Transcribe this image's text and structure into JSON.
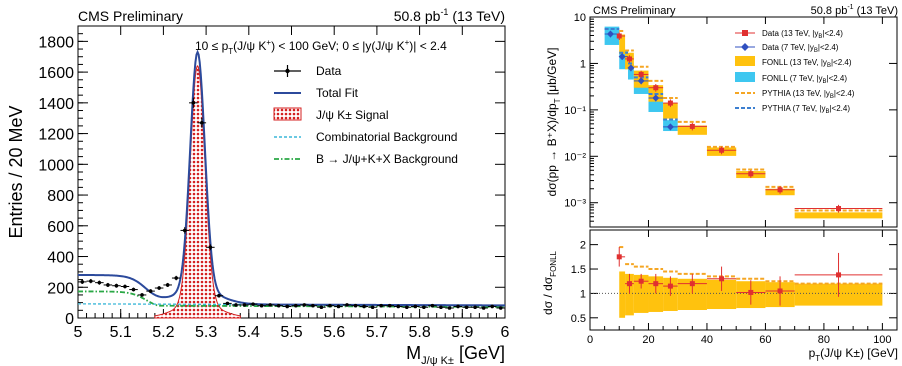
{
  "chart_data": [
    {
      "type": "scatter",
      "header_left": "CMS Preliminary",
      "header_right": "50.8 pb",
      "header_right_sup": "-1",
      "header_right_tail": " (13 TeV)",
      "xlabel": "M",
      "xlabel_sub": "J/ψ K±",
      "xlabel_unit": " [GeV]",
      "ylabel": "Entries / 20 MeV",
      "xlim": [
        5,
        6
      ],
      "ylim": [
        0,
        1900
      ],
      "xticks": [
        "5",
        "5.1",
        "5.2",
        "5.3",
        "5.4",
        "5.5",
        "5.6",
        "5.7",
        "5.8",
        "5.9",
        "6"
      ],
      "yticks": [
        "0",
        "200",
        "400",
        "600",
        "800",
        "1000",
        "1200",
        "1400",
        "1600",
        "1800"
      ],
      "cut_text": "10 ≤ p",
      "cut_text_sub": "T",
      "cut_text_a": "(J/ψ K",
      "cut_text_sup": "+",
      "cut_text_b": ") < 100 GeV; 0 ≤ |y(J/ψ K",
      "cut_text_sup2": "+",
      "cut_text_c": ")| < 2.4",
      "legend": [
        "Data",
        "Total Fit",
        "J/ψ K± Signal",
        "Combinatorial Background",
        "B → J/ψ+K+X Background"
      ],
      "x": [
        5.01,
        5.03,
        5.05,
        5.07,
        5.09,
        5.11,
        5.13,
        5.15,
        5.17,
        5.19,
        5.21,
        5.23,
        5.25,
        5.27,
        5.29,
        5.31,
        5.33,
        5.35,
        5.37,
        5.39,
        5.41,
        5.43,
        5.45,
        5.47,
        5.49,
        5.51,
        5.53,
        5.55,
        5.57,
        5.59,
        5.61,
        5.63,
        5.65,
        5.67,
        5.69,
        5.71,
        5.73,
        5.75,
        5.77,
        5.79,
        5.81,
        5.83,
        5.85,
        5.87,
        5.89,
        5.91,
        5.93,
        5.95,
        5.97,
        5.99
      ],
      "y": [
        235,
        240,
        230,
        215,
        210,
        205,
        185,
        150,
        175,
        195,
        215,
        260,
        570,
        1400,
        1270,
        460,
        145,
        95,
        85,
        85,
        90,
        80,
        85,
        80,
        75,
        80,
        85,
        80,
        70,
        80,
        75,
        85,
        80,
        75,
        70,
        80,
        80,
        75,
        70,
        75,
        70,
        80,
        70,
        65,
        75,
        70,
        70,
        65,
        75,
        65
      ],
      "fit_peak": 1630,
      "signal_mean": 5.28,
      "signal_sigma": 0.017,
      "combinatorial_level": 82,
      "partial_level": 120,
      "partial_edge": 5.16
    },
    {
      "type": "scatter",
      "header_left": "CMS Preliminary",
      "header_right": "50.8 pb",
      "header_right_sup": "-1",
      "header_right_tail": " (13 TeV)",
      "ylabel": "dσ(pp → B⁺X)/dp",
      "ylabel_sub": "T",
      "ylabel_unit": " [μb/GeV]",
      "yscale": "log",
      "ylim": [
        0.0003,
        10
      ],
      "yticks": [
        "10",
        "1",
        "10⁻¹",
        "10⁻²",
        "10⁻³"
      ],
      "ytick_values": [
        10,
        1,
        0.1,
        0.01,
        0.001
      ],
      "xlim": [
        0,
        105
      ],
      "legend": [
        {
          "label": "Data (13 TeV, |y",
          "sub": "B",
          "tail": "|<2.4)"
        },
        {
          "label": "Data (7 TeV, |y",
          "sub": "B",
          "tail": "|<2.4)"
        },
        {
          "label": "FONLL (13 TeV, |y",
          "sub": "B",
          "tail": "|<2.4)"
        },
        {
          "label": "FONLL (7 TeV, |y",
          "sub": "B",
          "tail": "|<2.4)"
        },
        {
          "label": "PYTHIA (13 TeV, |y",
          "sub": "B",
          "tail": "|<2.4)"
        },
        {
          "label": "PYTHIA (7 TeV, |y",
          "sub": "B",
          "tail": "|<2.4)"
        }
      ],
      "colors": {
        "data13": "#e03030",
        "data7": "#3050c0",
        "fonll13": "#ffc20e",
        "fonll7": "#3ec7f0",
        "pythia13": "#f5a623",
        "pythia7": "#3c7fd0"
      },
      "series": [
        {
          "name": "Data (13 TeV, |yB|<2.4)",
          "x": [
            10,
            13.5,
            17.5,
            22.5,
            27.5,
            35,
            45,
            55,
            65,
            85
          ],
          "xlow": [
            10,
            12,
            15,
            20,
            25,
            30,
            40,
            50,
            60,
            70
          ],
          "xhigh": [
            12,
            15,
            20,
            25,
            30,
            40,
            50,
            60,
            70,
            100
          ],
          "y": [
            3.9,
            1.25,
            0.58,
            0.3,
            0.14,
            0.044,
            0.0135,
            0.0042,
            0.0019,
            0.00075
          ]
        },
        {
          "name": "Data (7 TeV, |yB|<2.4)",
          "x": [
            7,
            11,
            14,
            17.5,
            22.5,
            27.5
          ],
          "xlow": [
            5,
            10,
            13,
            15,
            20,
            25
          ],
          "xhigh": [
            10,
            13,
            15,
            20,
            25,
            30
          ],
          "y": [
            4.3,
            1.4,
            0.8,
            0.42,
            0.18,
            0.043
          ]
        },
        {
          "name": "FONLL (13 TeV, |yB|<2.4)",
          "xlow": [
            10,
            12,
            15,
            20,
            25,
            30,
            40,
            50,
            60,
            70
          ],
          "xhigh": [
            12,
            15,
            20,
            25,
            30,
            40,
            50,
            60,
            70,
            100
          ],
          "ylow": [
            1.6,
            0.75,
            0.3,
            0.15,
            0.065,
            0.029,
            0.0102,
            0.0034,
            0.00145,
            0.00046
          ],
          "yhigh": [
            4.2,
            1.7,
            0.7,
            0.34,
            0.14,
            0.046,
            0.0155,
            0.0048,
            0.002,
            0.00062
          ]
        },
        {
          "name": "FONLL (7 TeV, |yB|<2.4)",
          "xlow": [
            5,
            10,
            13,
            15,
            20,
            25
          ],
          "xhigh": [
            10,
            13,
            15,
            20,
            25,
            30
          ],
          "ylow": [
            2.5,
            0.75,
            0.45,
            0.22,
            0.09,
            0.035
          ],
          "yhigh": [
            6.2,
            1.9,
            1.0,
            0.45,
            0.2,
            0.06
          ]
        },
        {
          "name": "PYTHIA (13 TeV, |yB|<2.4)",
          "xlow": [
            10,
            12,
            15,
            20,
            25,
            30,
            40,
            50,
            60,
            70
          ],
          "xhigh": [
            12,
            15,
            20,
            25,
            30,
            40,
            50,
            60,
            70,
            100
          ],
          "y": [
            5.0,
            1.9,
            0.85,
            0.42,
            0.18,
            0.055,
            0.016,
            0.0052,
            0.0022,
            0.00068
          ]
        },
        {
          "name": "PYTHIA (7 TeV, |yB|<2.4)",
          "xlow": [
            5,
            10,
            13,
            15,
            20,
            25
          ],
          "xhigh": [
            10,
            13,
            15,
            20,
            25,
            30
          ],
          "y": [
            5.5,
            1.7,
            1.0,
            0.5,
            0.22,
            0.062
          ]
        }
      ]
    },
    {
      "type": "scatter",
      "ylabel": "dσ / dσ",
      "ylabel_sub": "FONLL",
      "xlabel": "p",
      "xlabel_sub": "T",
      "xlabel_tail": "(J/ψ K±) [GeV]",
      "xlim": [
        0,
        105
      ],
      "ylim": [
        0.25,
        2.3
      ],
      "xticks": [
        "0",
        "20",
        "40",
        "60",
        "80",
        "100"
      ],
      "yticks": [
        "0.5",
        "1",
        "1.5",
        "2"
      ],
      "series": [
        {
          "name": "Data / FONLL",
          "x": [
            10,
            13.5,
            17.5,
            22.5,
            27.5,
            35,
            45,
            55,
            65,
            85
          ],
          "xlow": [
            10,
            12,
            15,
            20,
            25,
            30,
            40,
            50,
            60,
            70
          ],
          "xhigh": [
            12,
            15,
            20,
            25,
            30,
            40,
            50,
            60,
            70,
            100
          ],
          "y": [
            1.75,
            1.2,
            1.25,
            1.2,
            1.15,
            1.2,
            1.3,
            1.02,
            1.05,
            1.38
          ],
          "err": [
            0.2,
            0.2,
            0.15,
            0.2,
            0.2,
            0.2,
            0.25,
            0.25,
            0.3,
            0.45
          ]
        },
        {
          "name": "FONLL band",
          "xlow": [
            10,
            12,
            15,
            20,
            25,
            30,
            40,
            50,
            60,
            70
          ],
          "xhigh": [
            12,
            15,
            20,
            25,
            30,
            40,
            50,
            60,
            70,
            100
          ],
          "ylow": [
            0.5,
            0.55,
            0.6,
            0.62,
            0.64,
            0.66,
            0.68,
            0.7,
            0.72,
            0.75
          ],
          "yhigh": [
            1.45,
            1.4,
            1.38,
            1.35,
            1.32,
            1.3,
            1.28,
            1.25,
            1.23,
            1.2
          ]
        },
        {
          "name": "PYTHIA / FONLL",
          "xlow": [
            10,
            12,
            15,
            20,
            25,
            30,
            40,
            50,
            60,
            70
          ],
          "xhigh": [
            12,
            15,
            20,
            25,
            30,
            40,
            50,
            60,
            70,
            100
          ],
          "y": [
            1.95,
            1.6,
            1.55,
            1.5,
            1.45,
            1.4,
            1.35,
            1.3,
            1.25,
            1.2
          ]
        }
      ]
    }
  ]
}
